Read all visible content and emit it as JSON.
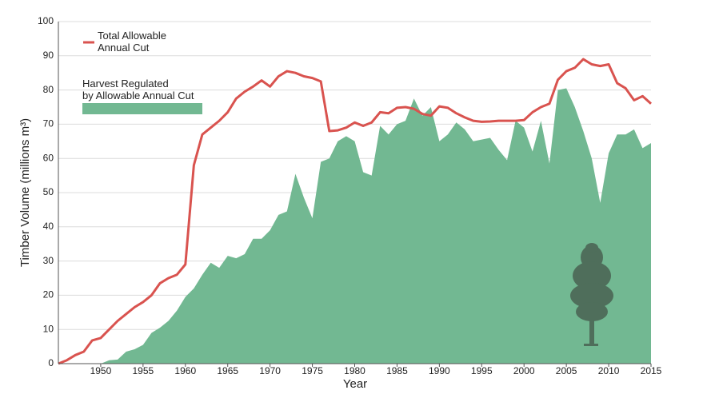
{
  "chart_data": {
    "type": "line",
    "x": [
      1945,
      1946,
      1947,
      1948,
      1949,
      1950,
      1951,
      1952,
      1953,
      1954,
      1955,
      1956,
      1957,
      1958,
      1959,
      1960,
      1961,
      1962,
      1963,
      1964,
      1965,
      1966,
      1967,
      1968,
      1969,
      1970,
      1971,
      1972,
      1973,
      1974,
      1975,
      1976,
      1977,
      1978,
      1979,
      1980,
      1981,
      1982,
      1983,
      1984,
      1985,
      1986,
      1987,
      1988,
      1989,
      1990,
      1991,
      1992,
      1993,
      1994,
      1995,
      1996,
      1997,
      1998,
      1999,
      2000,
      2001,
      2002,
      2003,
      2004,
      2005,
      2006,
      2007,
      2008,
      2009,
      2010,
      2011,
      2012,
      2013,
      2014,
      2015
    ],
    "series": [
      {
        "name": "Harvest Regulated\nby Allowable Annual Cut",
        "color": "#72b892",
        "area": true,
        "values": [
          null,
          null,
          null,
          null,
          null,
          0,
          1,
          1.2,
          3.5,
          4.2,
          5.5,
          9,
          10.5,
          12.5,
          15.5,
          19.5,
          22,
          26,
          29.5,
          28,
          31.5,
          30.8,
          32,
          36.5,
          36.5,
          39,
          43.5,
          44.5,
          55.5,
          48.5,
          42.5,
          59,
          60,
          65,
          66.5,
          65,
          56,
          55,
          69.5,
          67,
          70,
          71,
          77.5,
          72.5,
          75,
          65,
          67,
          70.5,
          68.5,
          65,
          65.5,
          66,
          62.5,
          59.5,
          71,
          69,
          62,
          71,
          58.5,
          80,
          80.5,
          75,
          68,
          60,
          47,
          61.5,
          67,
          67,
          68.5,
          63,
          64.5
        ]
      },
      {
        "name": "Total Allowable\nAnnual Cut",
        "color": "#d9534f",
        "area": false,
        "values": [
          0,
          1,
          2.5,
          3.5,
          6.8,
          7.5,
          10,
          12.5,
          14.5,
          16.5,
          18,
          20,
          23.5,
          25,
          26,
          29,
          58,
          67,
          69,
          71,
          73.5,
          77.5,
          79.5,
          81,
          82.8,
          81,
          84,
          85.5,
          85,
          84,
          83.5,
          82.5,
          68,
          68.2,
          69,
          70.5,
          69.5,
          70.5,
          73.5,
          73.2,
          74.8,
          75,
          74.5,
          73,
          72.5,
          75.2,
          74.8,
          73.2,
          72,
          71,
          70.7,
          70.8,
          71,
          71,
          71,
          71.2,
          73.5,
          75,
          76,
          83,
          85.5,
          86.5,
          89,
          87.5,
          87,
          87.5,
          82,
          80.5,
          77,
          78.2,
          76
        ]
      }
    ],
    "xlabel": "Year",
    "ylabel": "Timber Volume (millions m³)",
    "xlim": [
      1945,
      2015
    ],
    "xticks": [
      1950,
      1955,
      1960,
      1965,
      1970,
      1975,
      1980,
      1985,
      1990,
      1995,
      2000,
      2005,
      2010,
      2015
    ],
    "ylim": [
      0,
      100
    ],
    "yticks": [
      0,
      10,
      20,
      30,
      40,
      50,
      60,
      70,
      80,
      90,
      100
    ],
    "grid": true
  }
}
